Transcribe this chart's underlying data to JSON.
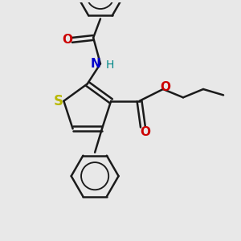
{
  "bg_color": "#e8e8e8",
  "bond_color": "#1a1a1a",
  "bond_width": 1.8,
  "S_color": "#b8b800",
  "N_color": "#0000cc",
  "O_color": "#cc0000",
  "H_color": "#008888",
  "figsize": [
    3.0,
    3.0
  ],
  "dpi": 100,
  "xlim": [
    0,
    10
  ],
  "ylim": [
    0,
    10
  ]
}
